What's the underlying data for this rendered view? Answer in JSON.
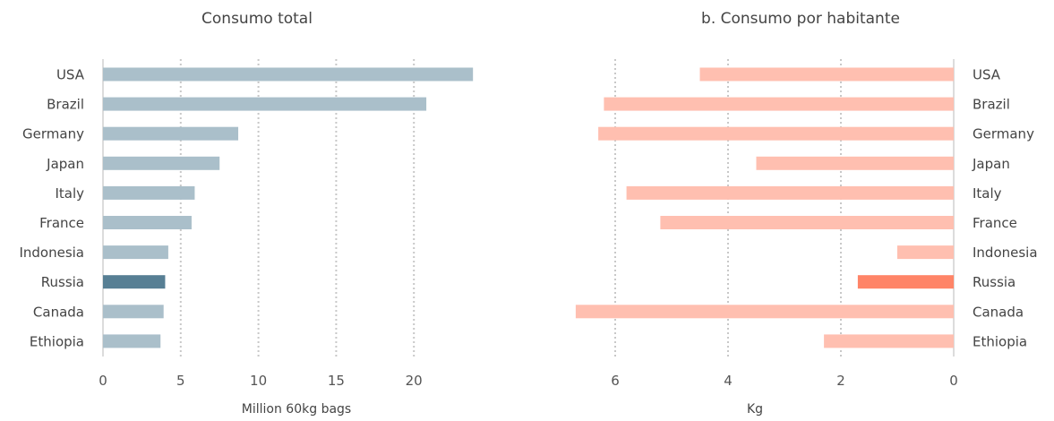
{
  "chart_data": [
    {
      "type": "bar",
      "orientation": "horizontal",
      "title": "Consumo total",
      "xlabel": "Million 60kg bags",
      "ylabel": "",
      "categories": [
        "USA",
        "Brazil",
        "Germany",
        "Japan",
        "Italy",
        "France",
        "Indonesia",
        "Russia",
        "Canada",
        "Ethiopia"
      ],
      "values": [
        23.8,
        20.8,
        8.7,
        7.5,
        5.9,
        5.7,
        4.2,
        4.0,
        3.9,
        3.7
      ],
      "highlight": "Russia",
      "xlim": [
        0,
        25
      ],
      "xticks": [
        0,
        5,
        10,
        15,
        20
      ],
      "grid": true,
      "colors": {
        "bar": "#aabfca",
        "highlight": "#577f94"
      }
    },
    {
      "type": "bar",
      "orientation": "horizontal",
      "title": "b. Consumo por habitante",
      "xlabel": "Kg",
      "ylabel": "",
      "categories": [
        "USA",
        "Brazil",
        "Germany",
        "Japan",
        "Italy",
        "France",
        "Indonesia",
        "Russia",
        "Canada",
        "Ethiopia"
      ],
      "values": [
        4.5,
        6.2,
        6.3,
        3.5,
        5.8,
        5.2,
        1.0,
        1.7,
        6.7,
        2.3
      ],
      "highlight": "Russia",
      "xlim": [
        0,
        7
      ],
      "xticks": [
        6,
        4,
        2,
        0
      ],
      "x_reversed": true,
      "grid": true,
      "colors": {
        "bar": "#ffbfb0",
        "highlight": "#ff8467"
      }
    }
  ]
}
